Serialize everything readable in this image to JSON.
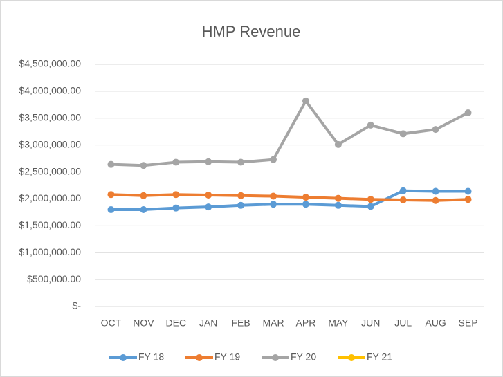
{
  "chart_data": {
    "type": "line",
    "title": "HMP Revenue",
    "categories": [
      "OCT",
      "NOV",
      "DEC",
      "JAN",
      "FEB",
      "MAR",
      "APR",
      "MAY",
      "JUN",
      "JUL",
      "AUG",
      "SEP"
    ],
    "series": [
      {
        "name": "FY 18",
        "color": "#5b9bd5",
        "values": [
          1800000,
          1800000,
          1830000,
          1850000,
          1880000,
          1900000,
          1900000,
          1880000,
          1860000,
          2150000,
          2140000,
          2140000
        ]
      },
      {
        "name": "FY 19",
        "color": "#ed7d31",
        "values": [
          2080000,
          2060000,
          2080000,
          2070000,
          2060000,
          2050000,
          2030000,
          2010000,
          1990000,
          1980000,
          1970000,
          1990000
        ]
      },
      {
        "name": "FY 20",
        "color": "#a5a5a5",
        "values": [
          2640000,
          2620000,
          2680000,
          2690000,
          2680000,
          2730000,
          3820000,
          3010000,
          3370000,
          3210000,
          3290000,
          3600000
        ]
      },
      {
        "name": "FY 21",
        "color": "#ffc000",
        "values": [
          null,
          null,
          null,
          null,
          null,
          null,
          null,
          null,
          null,
          null,
          null,
          null
        ]
      }
    ],
    "ylim": [
      0,
      4500000
    ],
    "yticks": [
      {
        "value": 0,
        "label": "$-"
      },
      {
        "value": 500000,
        "label": "$500,000.00"
      },
      {
        "value": 1000000,
        "label": "$1,000,000.00"
      },
      {
        "value": 1500000,
        "label": "$1,500,000.00"
      },
      {
        "value": 2000000,
        "label": "$2,000,000.00"
      },
      {
        "value": 2500000,
        "label": "$2,500,000.00"
      },
      {
        "value": 3000000,
        "label": "$3,000,000.00"
      },
      {
        "value": 3500000,
        "label": "$3,500,000.00"
      },
      {
        "value": 4000000,
        "label": "$4,000,000.00"
      },
      {
        "value": 4500000,
        "label": "$4,500,000.00"
      }
    ],
    "grid": true,
    "legend": "bottom"
  }
}
